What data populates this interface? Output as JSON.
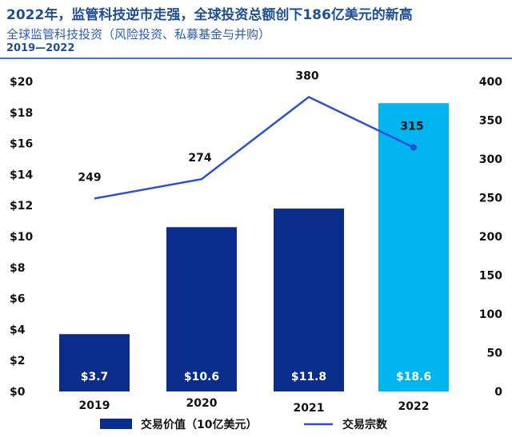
{
  "header": {
    "title": "2022年，监管科技逆市走强，全球投资总额创下186亿美元的新高",
    "subtitle": "全球监管科技投资（风险投资、私募基金与并购）",
    "period": "2019—2022"
  },
  "chart_data": {
    "type": "bar",
    "categories": [
      "2019",
      "2020",
      "2021",
      "2022"
    ],
    "series": [
      {
        "name": "交易价值（10亿美元）",
        "kind": "bar",
        "axis": "left",
        "values": [
          3.7,
          10.6,
          11.8,
          18.6
        ],
        "labels": [
          "$3.7",
          "$10.6",
          "$11.8",
          "$18.6"
        ],
        "colors": [
          "#0a2d8c",
          "#0a2d8c",
          "#0a2d8c",
          "#00b4ef"
        ]
      },
      {
        "name": "交易宗数",
        "kind": "line",
        "axis": "right",
        "values": [
          249,
          274,
          380,
          315
        ],
        "color": "#2a4fd6"
      }
    ],
    "y_left": {
      "min": 0,
      "max": 20,
      "ticks": [
        "$0",
        "$2",
        "$4",
        "$6",
        "$8",
        "$10",
        "$12",
        "$14",
        "$16",
        "$18",
        "$20"
      ]
    },
    "y_right": {
      "min": 0,
      "max": 400,
      "ticks": [
        "0",
        "50",
        "100",
        "150",
        "200",
        "250",
        "300",
        "350",
        "400"
      ]
    },
    "grid": false,
    "legend": "bottom"
  }
}
